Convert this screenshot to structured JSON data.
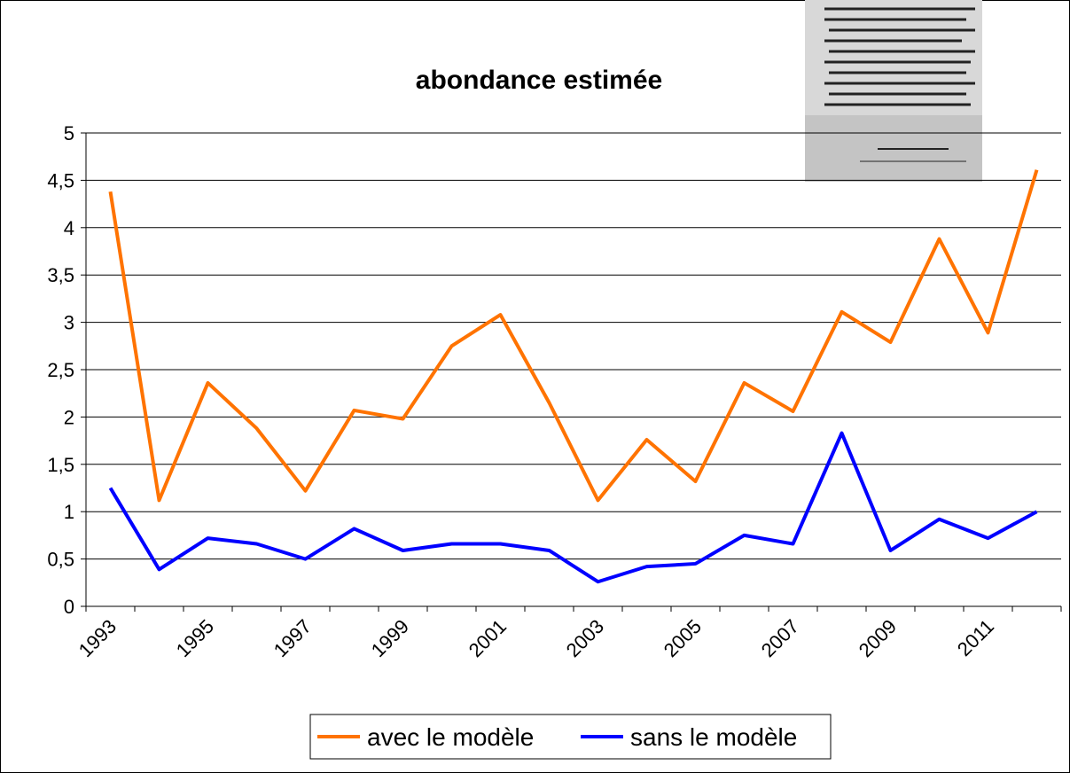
{
  "chart_data": {
    "type": "line",
    "title": "abondance estimée",
    "categories": [
      "1993",
      null,
      "1995",
      null,
      "1997",
      null,
      "1999",
      null,
      "2001",
      null,
      "2003",
      null,
      "2005",
      null,
      "2007",
      null,
      "2009",
      null,
      "2011",
      null
    ],
    "series": [
      {
        "name": "avec le modèle",
        "color": "#ff7300",
        "values": [
          4.38,
          1.12,
          2.36,
          1.88,
          1.22,
          2.07,
          1.98,
          2.75,
          3.08,
          2.15,
          1.12,
          1.76,
          1.32,
          2.36,
          2.06,
          3.11,
          2.79,
          3.88,
          2.89,
          4.61
        ]
      },
      {
        "name": "sans le modèle",
        "color": "#0000ff",
        "values": [
          1.25,
          0.39,
          0.72,
          0.66,
          0.5,
          0.82,
          0.59,
          0.66,
          0.66,
          0.59,
          0.26,
          0.42,
          0.45,
          0.75,
          0.66,
          1.83,
          0.59,
          0.92,
          0.72,
          1.0
        ]
      }
    ],
    "ylim": [
      0,
      5
    ],
    "yticks": [
      0,
      {
        "value": 0.5,
        "label": "0,5"
      },
      1,
      {
        "value": 1.5,
        "label": "1,5"
      },
      2,
      {
        "value": 2.5,
        "label": "2,5"
      },
      3,
      {
        "value": 3.5,
        "label": "3,5"
      },
      4,
      {
        "value": 4.5,
        "label": "4,5"
      },
      5
    ],
    "grid": true,
    "legend": "bottom"
  }
}
